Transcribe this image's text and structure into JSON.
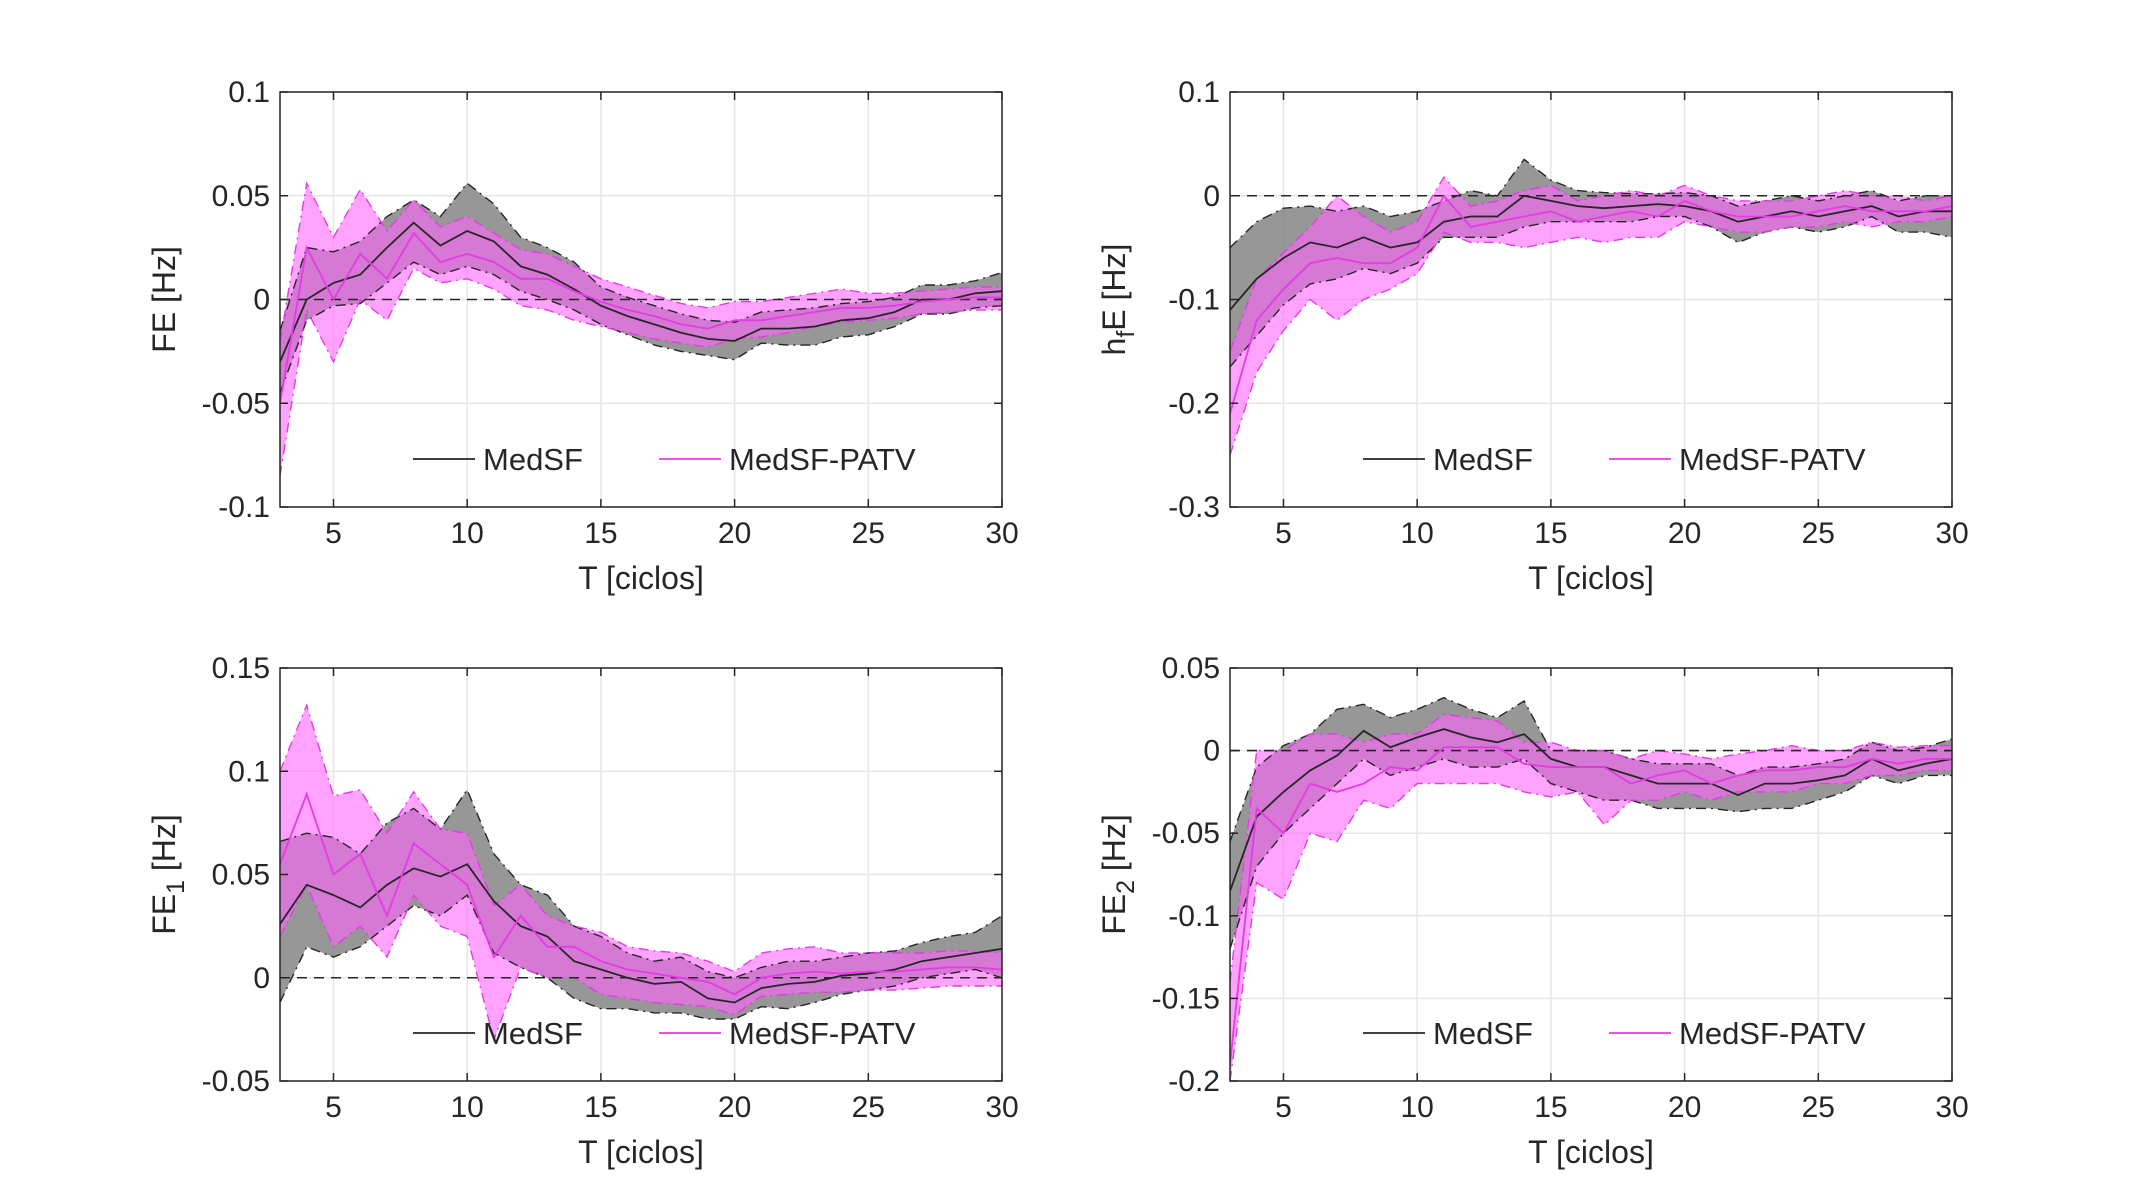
{
  "figure": {
    "legend_labels": [
      "MedSF",
      "MedSF-PATV"
    ]
  },
  "colors": {
    "medsf_line": "#262626",
    "medsf_band": "#8c8c8c",
    "patv_line": "#e43be4",
    "patv_band": "#ff66ff",
    "zero_line": "#262626",
    "grid": "#e6e6e6",
    "axes": "#262626"
  },
  "chart_data": [
    {
      "type": "area",
      "xlabel": "T [ciclos]",
      "ylabel": "FE [Hz]",
      "xlim": [
        3,
        30
      ],
      "ylim": [
        -0.1,
        0.1
      ],
      "xticks": [
        "5",
        "10",
        "15",
        "20",
        "25",
        "30"
      ],
      "yticks": [
        "-0.1",
        "-0.05",
        "0",
        "0.05",
        "0.1"
      ],
      "grid": true,
      "legend_placement": "bottom-center",
      "reference_line_y": 0,
      "x": [
        3,
        4,
        5,
        6,
        7,
        8,
        9,
        10,
        11,
        12,
        13,
        14,
        15,
        16,
        17,
        18,
        19,
        20,
        21,
        22,
        23,
        24,
        25,
        26,
        27,
        28,
        29,
        30
      ],
      "series": [
        {
          "name": "MedSF",
          "values": [
            -0.03,
            0.0,
            0.008,
            0.012,
            0.025,
            0.037,
            0.026,
            0.033,
            0.028,
            0.016,
            0.012,
            0.005,
            -0.003,
            -0.008,
            -0.012,
            -0.016,
            -0.019,
            -0.02,
            -0.014,
            -0.014,
            -0.013,
            -0.01,
            -0.009,
            -0.006,
            0.0,
            0.0,
            0.003,
            0.004
          ],
          "lower": [
            -0.045,
            -0.01,
            -0.003,
            -0.002,
            0.008,
            0.018,
            0.012,
            0.016,
            0.012,
            0.004,
            0.0,
            -0.005,
            -0.012,
            -0.017,
            -0.022,
            -0.025,
            -0.027,
            -0.029,
            -0.021,
            -0.022,
            -0.022,
            -0.018,
            -0.017,
            -0.013,
            -0.007,
            -0.007,
            -0.004,
            -0.003
          ],
          "upper": [
            -0.015,
            0.025,
            0.023,
            0.028,
            0.04,
            0.048,
            0.04,
            0.056,
            0.046,
            0.03,
            0.025,
            0.018,
            0.006,
            0.001,
            -0.003,
            -0.007,
            -0.01,
            -0.011,
            -0.006,
            -0.005,
            -0.004,
            -0.002,
            -0.001,
            0.001,
            0.007,
            0.007,
            0.009,
            0.013
          ]
        },
        {
          "name": "MedSF-PATV",
          "values": [
            -0.05,
            0.025,
            0.0,
            0.022,
            0.01,
            0.032,
            0.018,
            0.022,
            0.018,
            0.01,
            0.01,
            0.004,
            -0.001,
            -0.005,
            -0.008,
            -0.012,
            -0.014,
            -0.01,
            -0.01,
            -0.008,
            -0.006,
            -0.004,
            -0.004,
            -0.003,
            -0.001,
            0.0,
            0.001,
            0.001
          ],
          "lower": [
            -0.085,
            -0.005,
            -0.03,
            0.0,
            -0.01,
            0.015,
            0.008,
            0.01,
            0.005,
            -0.003,
            -0.005,
            -0.01,
            -0.013,
            -0.016,
            -0.019,
            -0.021,
            -0.023,
            -0.019,
            -0.018,
            -0.016,
            -0.013,
            -0.011,
            -0.01,
            -0.009,
            -0.007,
            -0.006,
            -0.005,
            -0.005
          ],
          "upper": [
            -0.02,
            0.056,
            0.03,
            0.053,
            0.033,
            0.048,
            0.035,
            0.04,
            0.032,
            0.024,
            0.022,
            0.016,
            0.01,
            0.006,
            0.002,
            -0.002,
            -0.004,
            -0.001,
            -0.001,
            0.001,
            0.003,
            0.005,
            0.003,
            0.003,
            0.004,
            0.005,
            0.006,
            0.006
          ]
        }
      ]
    },
    {
      "type": "area",
      "xlabel": "T [ciclos]",
      "ylabel_base": "h",
      "ylabel_sub": "f",
      "ylabel_rest": "E [Hz]",
      "xlim": [
        3,
        30
      ],
      "ylim": [
        -0.3,
        0.1
      ],
      "xticks": [
        "5",
        "10",
        "15",
        "20",
        "25",
        "30"
      ],
      "yticks": [
        "-0.3",
        "-0.2",
        "-0.1",
        "0",
        "0.1"
      ],
      "grid": true,
      "legend_placement": "bottom-center",
      "reference_line_y": 0,
      "x": [
        3,
        4,
        5,
        6,
        7,
        8,
        9,
        10,
        11,
        12,
        13,
        14,
        15,
        16,
        17,
        18,
        19,
        20,
        21,
        22,
        23,
        24,
        25,
        26,
        27,
        28,
        29,
        30
      ],
      "series": [
        {
          "name": "MedSF",
          "values": [
            -0.11,
            -0.08,
            -0.06,
            -0.045,
            -0.05,
            -0.04,
            -0.05,
            -0.045,
            -0.025,
            -0.02,
            -0.02,
            0.0,
            -0.005,
            -0.01,
            -0.012,
            -0.01,
            -0.008,
            -0.01,
            -0.015,
            -0.025,
            -0.02,
            -0.015,
            -0.02,
            -0.015,
            -0.01,
            -0.02,
            -0.015,
            -0.015
          ],
          "lower": [
            -0.165,
            -0.135,
            -0.105,
            -0.085,
            -0.08,
            -0.07,
            -0.075,
            -0.065,
            -0.04,
            -0.04,
            -0.04,
            -0.03,
            -0.025,
            -0.025,
            -0.025,
            -0.025,
            -0.02,
            -0.02,
            -0.03,
            -0.045,
            -0.035,
            -0.03,
            -0.035,
            -0.03,
            -0.02,
            -0.035,
            -0.035,
            -0.04
          ],
          "upper": [
            -0.05,
            -0.025,
            -0.012,
            -0.01,
            -0.015,
            -0.01,
            -0.02,
            -0.015,
            -0.005,
            0.005,
            0.0,
            0.035,
            0.015,
            0.005,
            0.003,
            0.002,
            0.002,
            0.003,
            0.0,
            -0.01,
            -0.005,
            0.0,
            -0.005,
            0.0,
            0.005,
            -0.005,
            0.0,
            0.0
          ]
        },
        {
          "name": "MedSF-PATV",
          "values": [
            -0.21,
            -0.12,
            -0.09,
            -0.065,
            -0.06,
            -0.065,
            -0.065,
            -0.05,
            0.0,
            -0.03,
            -0.025,
            -0.02,
            -0.015,
            -0.025,
            -0.02,
            -0.015,
            -0.02,
            -0.005,
            -0.015,
            -0.02,
            -0.02,
            -0.02,
            -0.015,
            -0.01,
            -0.015,
            -0.015,
            -0.015,
            -0.01
          ],
          "lower": [
            -0.25,
            -0.17,
            -0.13,
            -0.1,
            -0.12,
            -0.1,
            -0.09,
            -0.075,
            -0.035,
            -0.045,
            -0.045,
            -0.05,
            -0.045,
            -0.04,
            -0.045,
            -0.04,
            -0.04,
            -0.025,
            -0.03,
            -0.035,
            -0.035,
            -0.03,
            -0.03,
            -0.025,
            -0.03,
            -0.025,
            -0.025,
            -0.02
          ],
          "upper": [
            -0.15,
            -0.08,
            -0.055,
            -0.03,
            0.0,
            -0.02,
            -0.035,
            -0.025,
            0.018,
            -0.01,
            -0.005,
            0.005,
            0.01,
            -0.005,
            0.0,
            0.005,
            0.0,
            0.01,
            0.0,
            -0.005,
            -0.005,
            -0.005,
            0.0,
            0.005,
            0.0,
            0.0,
            -0.005,
            0.0
          ]
        }
      ]
    },
    {
      "type": "area",
      "xlabel": "T [ciclos]",
      "ylabel_base": "FE",
      "ylabel_sub": "1",
      "ylabel_rest": " [Hz]",
      "xlim": [
        3,
        30
      ],
      "ylim": [
        -0.05,
        0.15
      ],
      "xticks": [
        "5",
        "10",
        "15",
        "20",
        "25",
        "30"
      ],
      "yticks": [
        "-0.05",
        "0",
        "0.05",
        "0.1",
        "0.15"
      ],
      "grid": true,
      "legend_placement": "bottom-center",
      "reference_line_y": 0,
      "x": [
        3,
        4,
        5,
        6,
        7,
        8,
        9,
        10,
        11,
        12,
        13,
        14,
        15,
        16,
        17,
        18,
        19,
        20,
        21,
        22,
        23,
        24,
        25,
        26,
        27,
        28,
        29,
        30
      ],
      "series": [
        {
          "name": "MedSF",
          "values": [
            0.026,
            0.045,
            0.04,
            0.034,
            0.045,
            0.053,
            0.049,
            0.055,
            0.037,
            0.025,
            0.02,
            0.008,
            0.004,
            0.0,
            -0.003,
            -0.002,
            -0.01,
            -0.012,
            -0.005,
            -0.003,
            -0.002,
            0.001,
            0.002,
            0.004,
            0.008,
            0.01,
            0.012,
            0.014
          ],
          "lower": [
            -0.012,
            0.015,
            0.01,
            0.015,
            0.025,
            0.035,
            0.03,
            0.04,
            0.012,
            0.005,
            0.0,
            -0.01,
            -0.015,
            -0.015,
            -0.017,
            -0.017,
            -0.02,
            -0.02,
            -0.014,
            -0.015,
            -0.012,
            -0.008,
            -0.006,
            -0.004,
            0.0,
            0.002,
            0.004,
            0.0
          ],
          "upper": [
            0.066,
            0.07,
            0.068,
            0.06,
            0.075,
            0.082,
            0.072,
            0.091,
            0.06,
            0.045,
            0.04,
            0.025,
            0.02,
            0.012,
            0.008,
            0.01,
            0.003,
            0.0,
            0.005,
            0.008,
            0.008,
            0.01,
            0.012,
            0.013,
            0.017,
            0.02,
            0.022,
            0.03
          ]
        },
        {
          "name": "MedSF-PATV",
          "values": [
            0.055,
            0.089,
            0.05,
            0.06,
            0.03,
            0.065,
            0.055,
            0.045,
            0.01,
            0.03,
            0.015,
            0.015,
            0.008,
            0.004,
            0.002,
            0.0,
            -0.002,
            -0.008,
            0.0,
            0.002,
            0.003,
            0.002,
            0.003,
            0.003,
            0.004,
            0.005,
            0.005,
            0.004
          ],
          "lower": [
            0.02,
            0.045,
            0.015,
            0.025,
            0.01,
            0.04,
            0.025,
            0.02,
            -0.03,
            0.005,
            0.0,
            0.0,
            -0.008,
            -0.01,
            -0.012,
            -0.013,
            -0.014,
            -0.018,
            -0.009,
            -0.008,
            -0.007,
            -0.007,
            -0.006,
            -0.006,
            -0.005,
            -0.004,
            -0.004,
            -0.004
          ],
          "upper": [
            0.1,
            0.132,
            0.088,
            0.091,
            0.07,
            0.09,
            0.072,
            0.07,
            0.035,
            0.045,
            0.03,
            0.025,
            0.022,
            0.015,
            0.013,
            0.012,
            0.008,
            0.003,
            0.012,
            0.014,
            0.015,
            0.012,
            0.012,
            0.012,
            0.012,
            0.013,
            0.013,
            0.012
          ]
        }
      ]
    },
    {
      "type": "area",
      "xlabel": "T [ciclos]",
      "ylabel_base": "FE",
      "ylabel_sub": "2",
      "ylabel_rest": " [Hz]",
      "xlim": [
        3,
        30
      ],
      "ylim": [
        -0.2,
        0.05
      ],
      "xticks": [
        "5",
        "10",
        "15",
        "20",
        "25",
        "30"
      ],
      "yticks": [
        "-0.2",
        "-0.15",
        "-0.1",
        "-0.05",
        "0",
        "0.05"
      ],
      "grid": true,
      "legend_placement": "bottom-center",
      "reference_line_y": 0,
      "x": [
        3,
        4,
        5,
        6,
        7,
        8,
        9,
        10,
        11,
        12,
        13,
        14,
        15,
        16,
        17,
        18,
        19,
        20,
        21,
        22,
        23,
        24,
        25,
        26,
        27,
        28,
        29,
        30
      ],
      "series": [
        {
          "name": "MedSF",
          "values": [
            -0.085,
            -0.04,
            -0.025,
            -0.012,
            -0.003,
            0.012,
            0.002,
            0.008,
            0.013,
            0.008,
            0.005,
            0.01,
            -0.005,
            -0.01,
            -0.01,
            -0.015,
            -0.02,
            -0.02,
            -0.02,
            -0.027,
            -0.02,
            -0.02,
            -0.018,
            -0.015,
            -0.005,
            -0.012,
            -0.008,
            -0.005
          ],
          "lower": [
            -0.12,
            -0.07,
            -0.05,
            -0.035,
            -0.02,
            -0.005,
            -0.015,
            -0.01,
            -0.005,
            -0.01,
            -0.01,
            -0.005,
            -0.02,
            -0.025,
            -0.03,
            -0.03,
            -0.035,
            -0.035,
            -0.035,
            -0.037,
            -0.035,
            -0.035,
            -0.03,
            -0.025,
            -0.015,
            -0.02,
            -0.015,
            -0.015
          ],
          "upper": [
            -0.055,
            -0.01,
            0.003,
            0.01,
            0.025,
            0.028,
            0.02,
            0.025,
            0.032,
            0.025,
            0.02,
            0.03,
            0.0,
            0.0,
            0.0,
            -0.005,
            -0.008,
            -0.008,
            -0.008,
            -0.015,
            -0.01,
            -0.01,
            -0.008,
            -0.005,
            0.005,
            0.0,
            0.002,
            0.007
          ]
        },
        {
          "name": "MedSF-PATV",
          "values": [
            -0.19,
            -0.035,
            -0.05,
            -0.02,
            -0.025,
            -0.02,
            -0.01,
            -0.012,
            0.002,
            0.002,
            0.002,
            -0.008,
            -0.01,
            -0.01,
            -0.01,
            -0.02,
            -0.015,
            -0.012,
            -0.02,
            -0.015,
            -0.012,
            -0.012,
            -0.01,
            -0.01,
            -0.005,
            -0.008,
            -0.005,
            -0.005
          ],
          "lower": [
            -0.2,
            -0.08,
            -0.09,
            -0.05,
            -0.055,
            -0.03,
            -0.035,
            -0.02,
            -0.02,
            -0.02,
            -0.02,
            -0.025,
            -0.028,
            -0.025,
            -0.045,
            -0.03,
            -0.03,
            -0.025,
            -0.03,
            -0.025,
            -0.025,
            -0.025,
            -0.02,
            -0.02,
            -0.015,
            -0.015,
            -0.012,
            -0.012
          ],
          "upper": [
            -0.14,
            0.0,
            0.0,
            0.01,
            0.01,
            0.005,
            0.01,
            0.01,
            0.022,
            0.02,
            0.018,
            0.005,
            0.005,
            0.0,
            0.0,
            -0.005,
            0.0,
            -0.002,
            -0.005,
            -0.002,
            0.0,
            0.003,
            0.0,
            0.0,
            0.005,
            0.002,
            0.003,
            0.003
          ]
        }
      ]
    }
  ]
}
